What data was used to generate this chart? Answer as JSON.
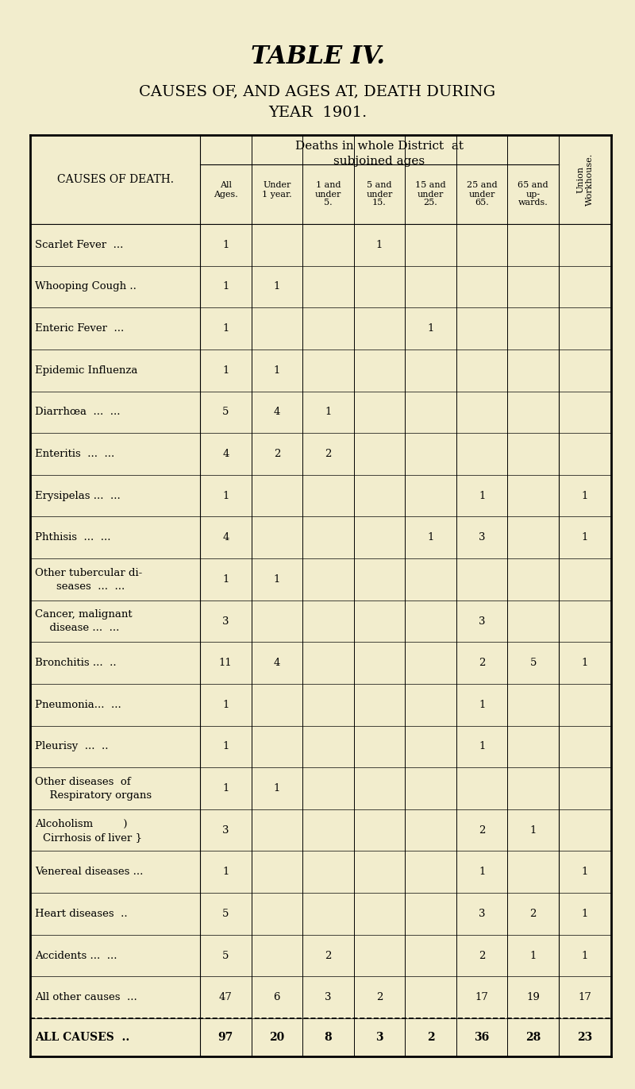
{
  "title1": "TABLE IV.",
  "title2": "CAUSES OF, AND AGES AT, DEATH DURING",
  "title3": "YEAR  1901.",
  "bg_color": "#f2edcd",
  "rows": [
    {
      "cause": "Scarlet Fever  ...",
      "cause2": null,
      "indent2": false,
      "vals": [
        "1",
        "",
        "",
        "1",
        "",
        "",
        ""
      ],
      "union": ""
    },
    {
      "cause": "Whooping Cough ..",
      "cause2": null,
      "indent2": false,
      "vals": [
        "1",
        "1",
        "",
        "",
        "",
        "",
        ""
      ],
      "union": ""
    },
    {
      "cause": "Enteric Fever  ...",
      "cause2": null,
      "indent2": false,
      "vals": [
        "1",
        "",
        "",
        "",
        "1",
        "",
        ""
      ],
      "union": ""
    },
    {
      "cause": "Epidemic Influenza",
      "cause2": null,
      "indent2": false,
      "vals": [
        "1",
        "1",
        "",
        "",
        "",
        "",
        ""
      ],
      "union": ""
    },
    {
      "cause": "Diarrhœa  ...  ...",
      "cause2": null,
      "indent2": false,
      "vals": [
        "5",
        "4",
        "1",
        "",
        "",
        "",
        ""
      ],
      "union": ""
    },
    {
      "cause": "Enteritis  ...  ...",
      "cause2": null,
      "indent2": false,
      "vals": [
        "4",
        "2",
        "2",
        "",
        "",
        "",
        ""
      ],
      "union": ""
    },
    {
      "cause": "Erysipelas ...  ...",
      "cause2": null,
      "indent2": false,
      "vals": [
        "1",
        "",
        "",
        "",
        "",
        "1",
        ""
      ],
      "union": "1"
    },
    {
      "cause": "Phthisis  ...  ...",
      "cause2": null,
      "indent2": false,
      "vals": [
        "4",
        "",
        "",
        "",
        "1",
        "3",
        ""
      ],
      "union": "1"
    },
    {
      "cause": "Other tubercular di-",
      "cause2": "    seases  ...  ...",
      "indent2": false,
      "vals": [
        "1",
        "1",
        "",
        "",
        "",
        "",
        ""
      ],
      "union": ""
    },
    {
      "cause": "Cancer, malignant",
      "cause2": "  disease ...  ...",
      "indent2": false,
      "vals": [
        "3",
        "",
        "",
        "",
        "",
        "3",
        ""
      ],
      "union": ""
    },
    {
      "cause": "Bronchitis ...  ..",
      "cause2": null,
      "indent2": false,
      "vals": [
        "11",
        "4",
        "",
        "",
        "",
        "2",
        "5"
      ],
      "union": "1"
    },
    {
      "cause": "Pneumonia...  ...",
      "cause2": null,
      "indent2": false,
      "vals": [
        "1",
        "",
        "",
        "",
        "",
        "1",
        ""
      ],
      "union": ""
    },
    {
      "cause": "Pleurisy  ...  ..",
      "cause2": null,
      "indent2": false,
      "vals": [
        "1",
        "",
        "",
        "",
        "",
        "1",
        ""
      ],
      "union": ""
    },
    {
      "cause": "Other diseases  of",
      "cause2": "  Respiratory organs",
      "indent2": false,
      "vals": [
        "1",
        "1",
        "",
        "",
        "",
        "",
        ""
      ],
      "union": ""
    },
    {
      "cause": "Alcoholism         )",
      "cause2": "Cirrhosis of liver }",
      "indent2": false,
      "vals": [
        "3",
        "",
        "",
        "",
        "",
        "2",
        "1"
      ],
      "union": ""
    },
    {
      "cause": "Venereal diseases ...",
      "cause2": null,
      "indent2": false,
      "vals": [
        "1",
        "",
        "",
        "",
        "",
        "1",
        ""
      ],
      "union": "1"
    },
    {
      "cause": "Heart diseases  ..",
      "cause2": null,
      "indent2": false,
      "vals": [
        "5",
        "",
        "",
        "",
        "",
        "3",
        "2"
      ],
      "union": "1"
    },
    {
      "cause": "Accidents ...  ...",
      "cause2": null,
      "indent2": false,
      "vals": [
        "5",
        "",
        "2",
        "",
        "",
        "2",
        "1"
      ],
      "union": "1"
    },
    {
      "cause": "All other causes  ...",
      "cause2": null,
      "indent2": false,
      "vals": [
        "47",
        "6",
        "3",
        "2",
        "",
        "17",
        "19"
      ],
      "union": "17"
    }
  ],
  "total_row": {
    "cause": "ALL CAUSES  ..",
    "vals": [
      "97",
      "20",
      "8",
      "3",
      "2",
      "36",
      "28"
    ],
    "union": "23"
  },
  "col_headers_line1": [
    "All",
    "Under",
    "1 and",
    "5 and",
    "15 and",
    "25 and",
    "65 and"
  ],
  "col_headers_line2": [
    "Ages.",
    "1 year.",
    "under",
    "under",
    "under",
    "under",
    "up-"
  ],
  "col_headers_line3": [
    "",
    "",
    "5.",
    "15.",
    "25.",
    "65.",
    "wards."
  ]
}
